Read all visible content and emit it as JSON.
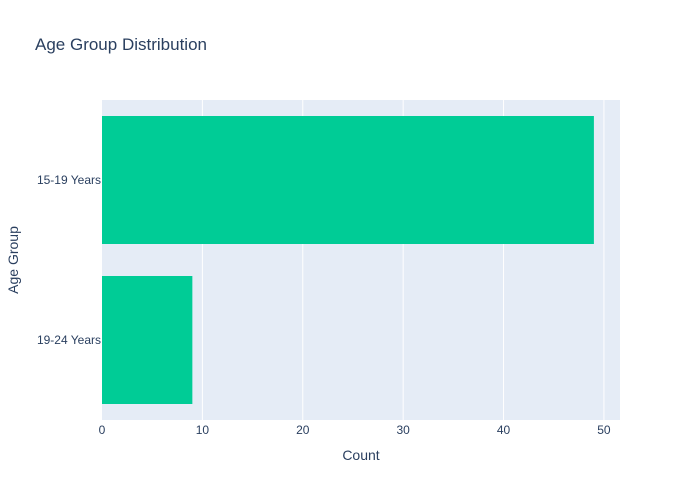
{
  "chart_data": {
    "type": "bar",
    "orientation": "horizontal",
    "title": "Age Group Distribution",
    "xlabel": "Count",
    "ylabel": "Age Group",
    "categories": [
      "15-19 Years",
      "19-24 Years"
    ],
    "values": [
      49,
      9
    ],
    "xlim": [
      0,
      51.6
    ],
    "xticks": [
      0,
      10,
      20,
      30,
      40,
      50
    ],
    "grid": true,
    "colors": {
      "bar": "#00cc96",
      "plot_background": "#e5ecf6",
      "grid": "#ffffff",
      "text": "#2a3f5f"
    }
  }
}
